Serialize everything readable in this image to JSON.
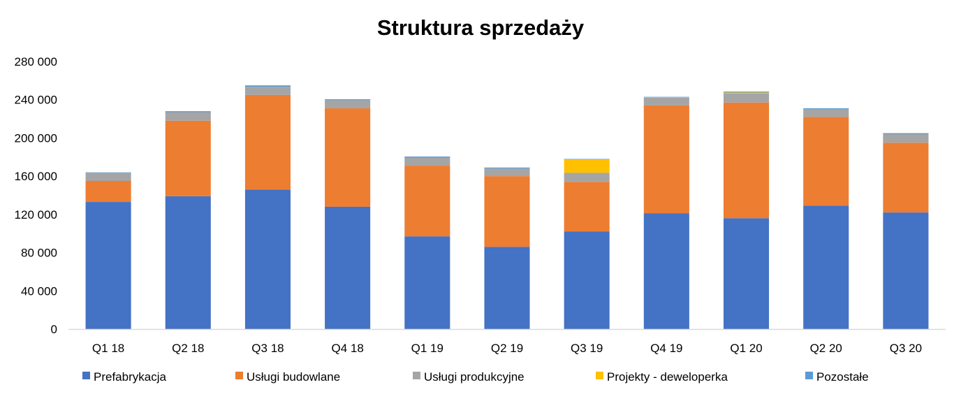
{
  "chart_data": {
    "type": "bar",
    "stacked": true,
    "title": "Struktura sprzedaży",
    "xlabel": "",
    "ylabel": "",
    "ylim": [
      0,
      280000
    ],
    "yticks": [
      0,
      40000,
      80000,
      120000,
      160000,
      200000,
      240000,
      280000
    ],
    "ytick_labels": [
      "0",
      "40 000",
      "80 000",
      "120 000",
      "160 000",
      "200 000",
      "240 000",
      "280 000"
    ],
    "grid": false,
    "legend_position": "bottom",
    "categories": [
      "Q1 18",
      "Q2 18",
      "Q3 18",
      "Q4 18",
      "Q1 19",
      "Q2 19",
      "Q3 19",
      "Q4 19",
      "Q1 20",
      "Q2 20",
      "Q3 20"
    ],
    "series": [
      {
        "name": "Prefabrykacja",
        "color": "#4472C4",
        "values": [
          133000,
          139000,
          146000,
          128000,
          97000,
          86000,
          102000,
          121000,
          116000,
          129000,
          122000
        ]
      },
      {
        "name": "Usługi budowlane",
        "color": "#ED7D31",
        "values": [
          22000,
          79000,
          99000,
          103000,
          74000,
          74000,
          52000,
          113000,
          121000,
          93000,
          73000
        ]
      },
      {
        "name": "Usługi produkcyjne",
        "color": "#A5A5A5",
        "values": [
          8500,
          9000,
          8500,
          8500,
          8500,
          8000,
          9500,
          8000,
          9500,
          8000,
          9000
        ]
      },
      {
        "name": "Projekty - deweloperka",
        "color": "#FFC000",
        "values": [
          0,
          0,
          0,
          0,
          0,
          0,
          14000,
          500,
          1000,
          0,
          0
        ]
      },
      {
        "name": "Pozostałe",
        "color": "#5B9BD5",
        "values": [
          500,
          1000,
          1500,
          1000,
          1000,
          1000,
          500,
          500,
          1000,
          1000,
          1000
        ]
      }
    ]
  }
}
